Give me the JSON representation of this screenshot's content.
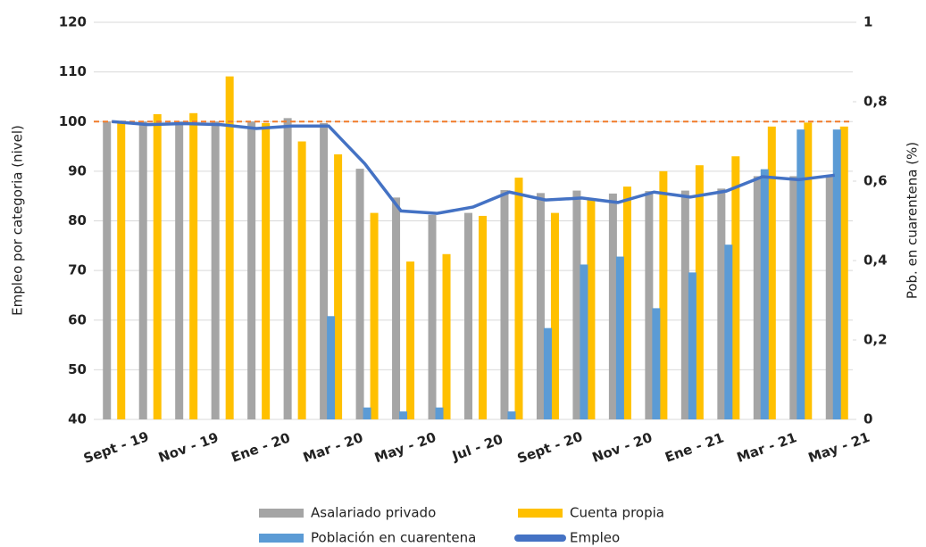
{
  "chart_data": {
    "type": "bar-line",
    "y_axis_label": "Empleo por categoria (nivel)",
    "y2_axis_label": "Pob. en cuarentena (%)",
    "categories": [
      "Sept - 19",
      null,
      "Nov - 19",
      null,
      "Ene - 20",
      null,
      "Mar - 20",
      null,
      "May - 20",
      null,
      "Jul - 20",
      null,
      "Sept - 20",
      null,
      "Nov - 20",
      null,
      "Ene - 21",
      null,
      "Mar - 21",
      null,
      "May - 21"
    ],
    "ylim": [
      40,
      120
    ],
    "yticks": [
      40,
      50,
      60,
      70,
      80,
      90,
      100,
      110,
      120
    ],
    "y2lim": [
      0,
      1
    ],
    "y2ticks": [
      0,
      {
        "value": 0.2,
        "label": "0,2"
      },
      {
        "value": 0.4,
        "label": "0,4"
      },
      {
        "value": 0.6,
        "label": "0,6"
      },
      {
        "value": 0.8,
        "label": "0,8"
      },
      1
    ],
    "grid": true,
    "reference_line": {
      "value": 100,
      "color": "#f07b2a"
    },
    "series": [
      {
        "name": "Asalariado privado",
        "type": "bar",
        "color": "#a5a5a5",
        "values": [
          100,
          100,
          100,
          100,
          100,
          100.7,
          99.7,
          90.5,
          84.7,
          81.2,
          81.6,
          86.2,
          85.6,
          86.1,
          85.5,
          86,
          86.1,
          86.5,
          89,
          89,
          89
        ]
      },
      {
        "name": "Cuenta propia",
        "type": "bar",
        "color": "#ffc000",
        "values": [
          100,
          101.5,
          101.7,
          109.1,
          99.7,
          96,
          93.4,
          81.6,
          71.8,
          73.3,
          81,
          88.7,
          81.6,
          84.2,
          86.9,
          90,
          91.2,
          93,
          99,
          99.8,
          99
        ]
      },
      {
        "name": "Población en cuarentena",
        "type": "bar",
        "axis": "y2",
        "color": "#5b9bd5",
        "values": [
          0,
          0,
          0,
          0,
          0,
          0,
          0.26,
          0.03,
          0.02,
          0.03,
          0,
          0.02,
          0.23,
          0.39,
          0.41,
          0.28,
          0.37,
          0.44,
          0.63,
          0.73,
          0.73
        ]
      },
      {
        "name": "Empleo",
        "type": "line",
        "color": "#4472c4",
        "values": [
          100,
          99.4,
          99.6,
          99.4,
          98.6,
          99.1,
          99.1,
          91.5,
          82,
          81.5,
          82.8,
          85.8,
          84.2,
          84.6,
          83.7,
          85.8,
          84.8,
          86,
          88.9,
          88.3,
          89.2
        ]
      }
    ]
  }
}
